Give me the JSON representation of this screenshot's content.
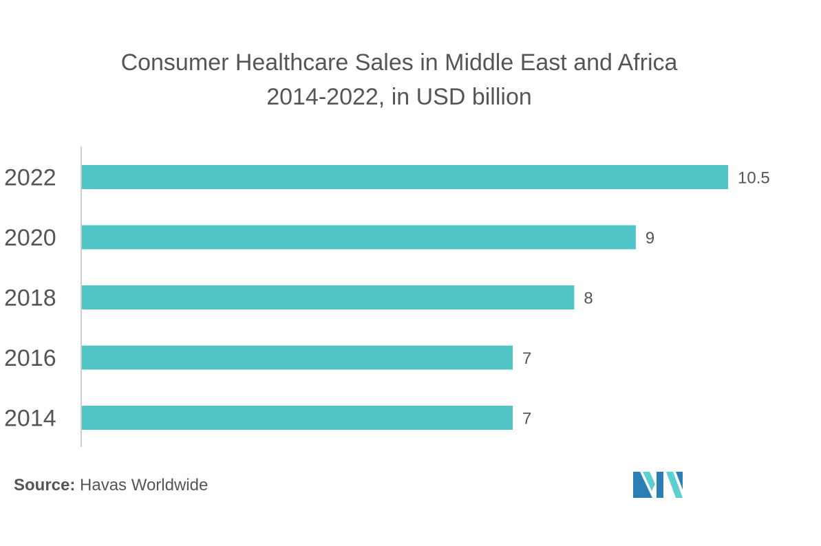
{
  "title_line1": "Consumer Healthcare Sales in Middle East and Africa",
  "title_line2": "2014-2022, in USD billion",
  "source_label": "Source:",
  "source_value": "Havas Worldwide",
  "colors": {
    "bar": "#50c4c6",
    "axis": "#cccccc",
    "text": "#555555",
    "logo_dark": "#2b7fb3",
    "logo_light": "#5ccfd0"
  },
  "logo_icon": "mordor-intelligence-logo-icon",
  "chart_data": {
    "type": "bar",
    "orientation": "horizontal",
    "title": "Consumer Healthcare Sales in Middle East and Africa 2014-2022, in USD billion",
    "categories": [
      "2022",
      "2020",
      "2018",
      "2016",
      "2014"
    ],
    "values": [
      10.5,
      9,
      8,
      7,
      7
    ],
    "value_labels": [
      "10.5",
      "9",
      "8",
      "7",
      "7"
    ],
    "xlabel": "",
    "ylabel": "",
    "xlim": [
      0,
      10.5
    ],
    "grid": false,
    "legend": "none"
  }
}
